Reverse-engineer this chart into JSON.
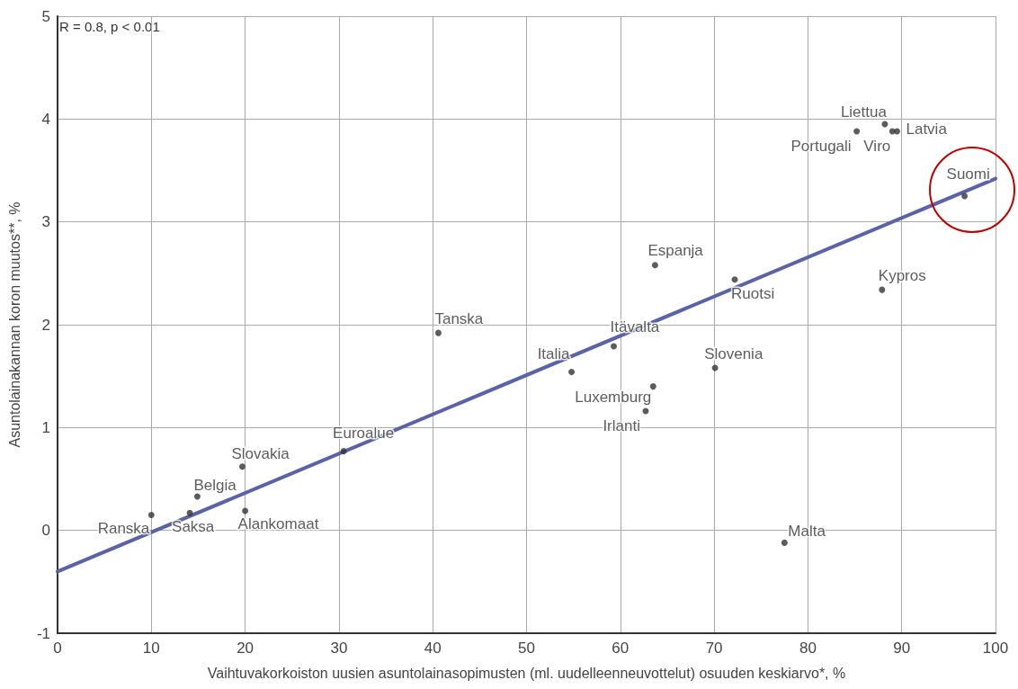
{
  "chart_data": {
    "type": "scatter",
    "xlabel": "Vaihtuvakorkoiston uusien asuntolainasopimusten (ml. uudelleenneuvottelut) osuuden keskiarvo*, %",
    "ylabel": "Asuntolainakannan koron muutos**, %",
    "xlim": [
      0,
      100
    ],
    "xticks": [
      0,
      10,
      20,
      30,
      40,
      50,
      60,
      70,
      80,
      90,
      100
    ],
    "ylim": [
      -1,
      5
    ],
    "yticks": [
      -1,
      0,
      1,
      2,
      3,
      4,
      5
    ],
    "grid": true,
    "marker": "circle",
    "series": [
      {
        "color": "#333333",
        "x": [
          10.0,
          14.1,
          14.9,
          19.7,
          20.0,
          30.5,
          40.6,
          54.8,
          59.3,
          63.5,
          62.7,
          70.1,
          77.5,
          63.7,
          72.2,
          87.9,
          85.2,
          88.2,
          89.0,
          89.5,
          96.7
        ],
        "values": [
          0.15,
          0.17,
          0.33,
          0.62,
          0.19,
          0.77,
          1.92,
          1.54,
          1.79,
          1.4,
          1.16,
          1.58,
          -0.12,
          2.58,
          2.44,
          2.34,
          3.88,
          3.95,
          3.88,
          3.88,
          3.25
        ]
      },
      {
        "type": "line",
        "color": "#5b63a8",
        "marker": "none",
        "line_style": "solid",
        "x": [
          0,
          100
        ],
        "values": [
          -0.4,
          3.42
        ]
      }
    ],
    "annotations": [
      "R = 0.8, p < 0.01",
      {
        "text": "Ranska",
        "x": 10.0,
        "y": 0.15
      },
      {
        "text": "Saksa",
        "x": 14.1,
        "y": 0.17
      },
      {
        "text": "Belgia",
        "x": 14.9,
        "y": 0.33
      },
      {
        "text": "Slovakia",
        "x": 19.7,
        "y": 0.62
      },
      {
        "text": "Alankomaat",
        "x": 20.0,
        "y": 0.19
      },
      {
        "text": "Euroalue",
        "x": 30.5,
        "y": 0.77
      },
      {
        "text": "Tanska",
        "x": 40.6,
        "y": 1.92
      },
      {
        "text": "Italia",
        "x": 54.8,
        "y": 1.54
      },
      {
        "text": "Itävalta",
        "x": 59.3,
        "y": 1.79
      },
      {
        "text": "Luxemburg",
        "x": 63.5,
        "y": 1.4
      },
      {
        "text": "Irlanti",
        "x": 62.7,
        "y": 1.16
      },
      {
        "text": "Slovenia",
        "x": 70.1,
        "y": 1.58
      },
      {
        "text": "Malta",
        "x": 77.5,
        "y": -0.12
      },
      {
        "text": "Espanja",
        "x": 63.7,
        "y": 2.58
      },
      {
        "text": "Ruotsi",
        "x": 72.2,
        "y": 2.44
      },
      {
        "text": "Kypros",
        "x": 87.9,
        "y": 2.34
      },
      {
        "text": "Portugali",
        "x": 85.2,
        "y": 3.88
      },
      {
        "text": "Liettua",
        "x": 88.2,
        "y": 3.95
      },
      {
        "text": "Viro",
        "x": 89.0,
        "y": 3.88
      },
      {
        "text": "Latvia",
        "x": 89.5,
        "y": 3.88
      },
      {
        "text": "Suomi",
        "x": 96.7,
        "y": 3.25
      }
    ]
  }
}
